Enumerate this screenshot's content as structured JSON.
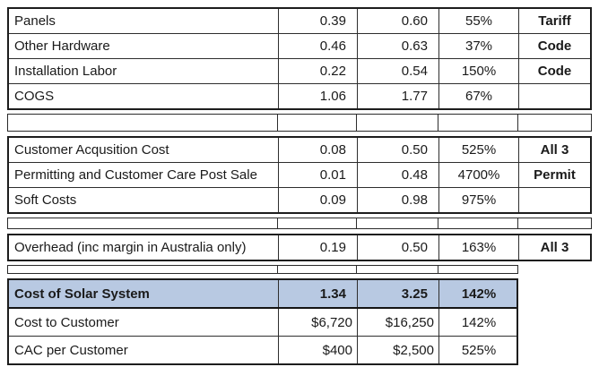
{
  "table": {
    "highlight_color": "#b8c9e2",
    "sections": {
      "cogs": {
        "rows": [
          {
            "label": "Panels",
            "v1": "0.39",
            "v2": "0.60",
            "pct": "55%",
            "note": "Tariff"
          },
          {
            "label": "Other Hardware",
            "v1": "0.46",
            "v2": "0.63",
            "pct": "37%",
            "note": "Code"
          },
          {
            "label": "Installation Labor",
            "v1": "0.22",
            "v2": "0.54",
            "pct": "150%",
            "note": "Code"
          },
          {
            "label": "COGS",
            "v1": "1.06",
            "v2": "1.77",
            "pct": "67%",
            "note": ""
          }
        ]
      },
      "soft": {
        "rows": [
          {
            "label": "Customer Acqusition Cost",
            "v1": "0.08",
            "v2": "0.50",
            "pct": "525%",
            "note": "All 3"
          },
          {
            "label": "Permitting and Customer Care Post Sale",
            "v1": "0.01",
            "v2": "0.48",
            "pct": "4700%",
            "note": "Permit"
          },
          {
            "label": "Soft Costs",
            "v1": "0.09",
            "v2": "0.98",
            "pct": "975%",
            "note": ""
          }
        ]
      },
      "overhead": {
        "rows": [
          {
            "label": "Overhead (inc margin in Australia only)",
            "v1": "0.19",
            "v2": "0.50",
            "pct": "163%",
            "note": "All 3"
          }
        ]
      },
      "totals": {
        "rows": [
          {
            "label": "Cost of Solar System",
            "v1": "1.34",
            "v2": "3.25",
            "pct": "142%"
          },
          {
            "label": "Cost to Customer",
            "v1": "$6,720",
            "v2": "$16,250",
            "pct": "142%"
          },
          {
            "label": "CAC per Customer",
            "v1": "$400",
            "v2": "$2,500",
            "pct": "525%"
          }
        ]
      }
    }
  }
}
